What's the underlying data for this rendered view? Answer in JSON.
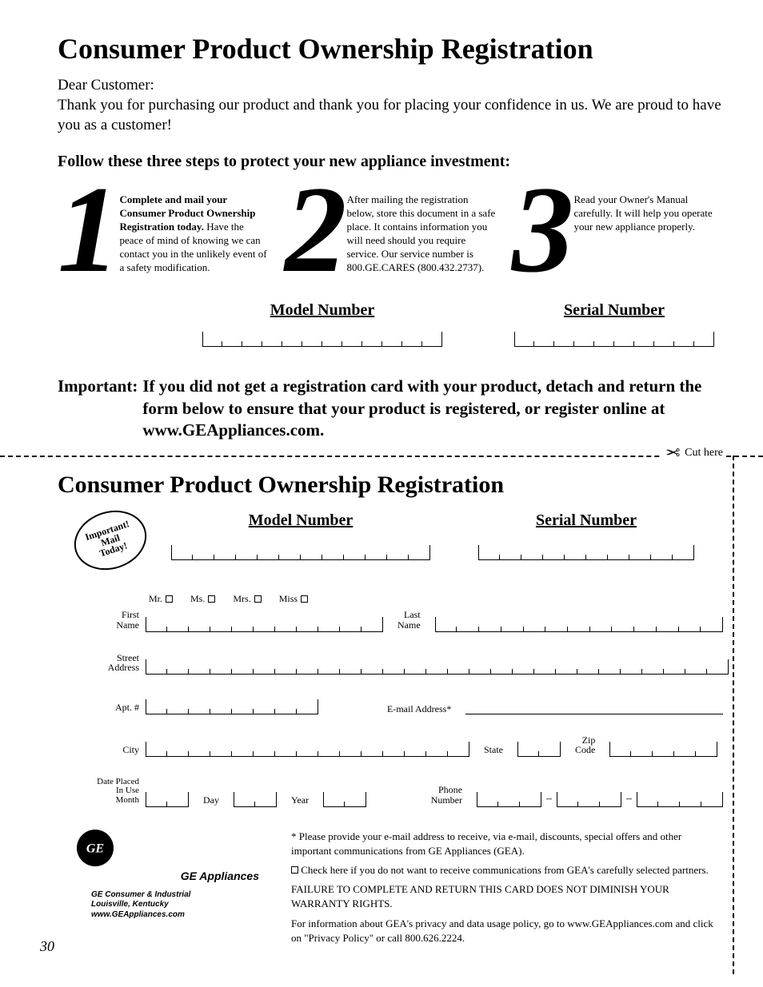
{
  "title_upper": "Consumer Product Ownership Registration",
  "greeting": "Dear Customer:",
  "thankyou": "Thank you for purchasing our product and thank you for placing your confidence in us. We are proud to have you as a customer!",
  "follow_heading": "Follow these three steps to protect your new appliance investment:",
  "steps": [
    {
      "num": "1",
      "bold": "Complete and mail your Consumer Product Ownership Registration today.",
      "rest": " Have the peace of mind of knowing we can contact you in the unlikely event of a safety modification."
    },
    {
      "num": "2",
      "bold": "",
      "rest": "After mailing the registration below, store this document in a safe place. It contains information you will need should you require service. Our service number is 800.GE.CARES (800.432.2737)."
    },
    {
      "num": "3",
      "bold": "",
      "rest": "Read your Owner's Manual carefully. It will help you operate your new appliance properly."
    }
  ],
  "upper_box_labels": {
    "model": "Model Number",
    "serial": "Serial Number"
  },
  "upper_box_counts": {
    "model": 12,
    "serial": 10
  },
  "important_lead": "Important:",
  "important_body": "If you did not get a registration card with your product, detach and return the form below to ensure that your product is registered, or register online at www.GEAppliances.com.",
  "cut_label": "Cut here",
  "title_lower": "Consumer Product Ownership Registration",
  "stamp_lines": [
    "Important!",
    "Mail",
    "Today!"
  ],
  "lower_box_labels": {
    "model": "Model Number",
    "serial": "Serial Number"
  },
  "lower_box_counts": {
    "model": 12,
    "serial": 10
  },
  "titles": [
    "Mr.",
    "Ms.",
    "Mrs.",
    "Miss"
  ],
  "labels": {
    "first_name": "First\nName",
    "last_name": "Last\nName",
    "street": "Street\nAddress",
    "apt": "Apt. #",
    "email": "E-mail Address*",
    "city": "City",
    "state": "State",
    "zip": "Zip\nCode",
    "date_placed": "Date Placed\nIn Use\nMonth",
    "day": "Day",
    "year": "Year",
    "phone": "Phone\nNumber"
  },
  "tick_counts": {
    "first_name": 11,
    "last_name": 13,
    "street": 27,
    "apt": 8,
    "city": 15,
    "state": 2,
    "zip": 5,
    "month": 2,
    "day": 2,
    "year": 2,
    "phone_a": 3,
    "phone_b": 3,
    "phone_c": 4
  },
  "footer_brand": "GE Appliances",
  "footer_addr": [
    "GE Consumer & Industrial",
    "Louisville, Kentucky",
    "www.GEAppliances.com"
  ],
  "footer_notes": {
    "email_note": "* Please provide your e-mail address to receive, via e-mail, discounts, special offers and other important communications from GE Appliances (GEA).",
    "optout": "Check here if you do not want to receive communications from GEA's carefully selected partners.",
    "warranty": "FAILURE TO COMPLETE AND RETURN THIS CARD DOES NOT DIMINISH YOUR WARRANTY RIGHTS.",
    "privacy": "For information about GEA's privacy and data usage policy, go to www.GEAppliances.com and click on \"Privacy Policy\" or call 800.626.2224."
  },
  "page_number": "30",
  "colors": {
    "text": "#000000",
    "bg": "#ffffff"
  }
}
